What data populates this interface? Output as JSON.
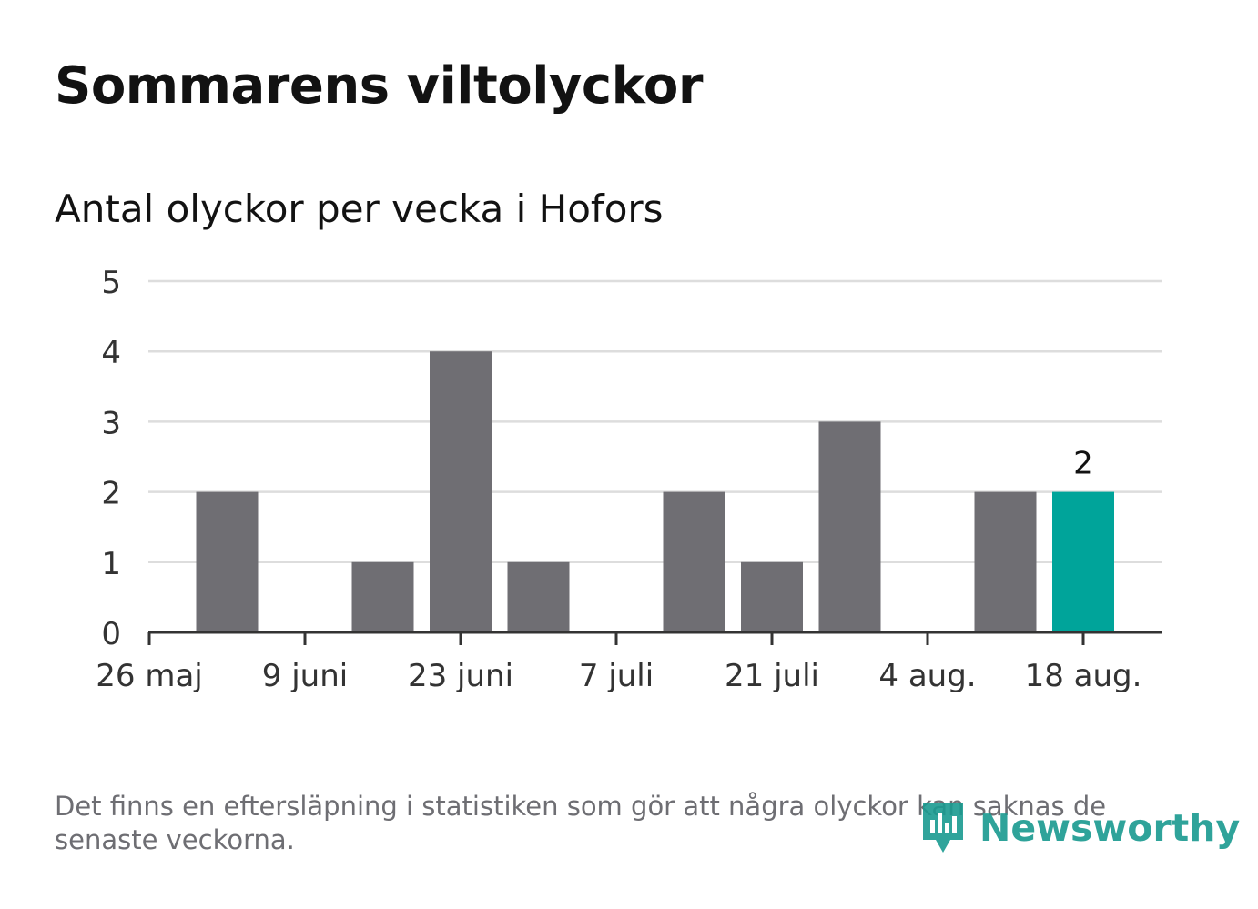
{
  "header": {
    "title": "Sommarens viltolyckor",
    "subtitle": "Antal olyckor per vecka i Hofors"
  },
  "chart_data": {
    "type": "bar",
    "categories": [
      "2 juni",
      "9 juni",
      "16 juni",
      "23 juni",
      "30 juni",
      "7 juli",
      "14 juli",
      "21 juli",
      "28 juli",
      "4 aug.",
      "11 aug.",
      "18 aug."
    ],
    "values": [
      2,
      0,
      1,
      4,
      1,
      0,
      2,
      1,
      3,
      0,
      2,
      2
    ],
    "highlight_index": 11,
    "highlight_label": "2",
    "x_ticks": [
      "26 maj",
      "9 juni",
      "23 juni",
      "7 juli",
      "21 juli",
      "4 aug.",
      "18 aug."
    ],
    "y_ticks": [
      "0",
      "1",
      "2",
      "3",
      "4",
      "5"
    ],
    "ylim": [
      0,
      5
    ],
    "grid": true,
    "colors": {
      "bar": "#6f6e73",
      "highlight": "#00a49a",
      "grid": "#dddddd",
      "axis": "#333333"
    }
  },
  "footer": {
    "note": "Det finns en eftersläpning i statistiken som gör att några olyckor kan saknas de senaste veckorna.",
    "brand": "Newsworthy",
    "brand_icon": "newsworthy-logo-icon"
  }
}
